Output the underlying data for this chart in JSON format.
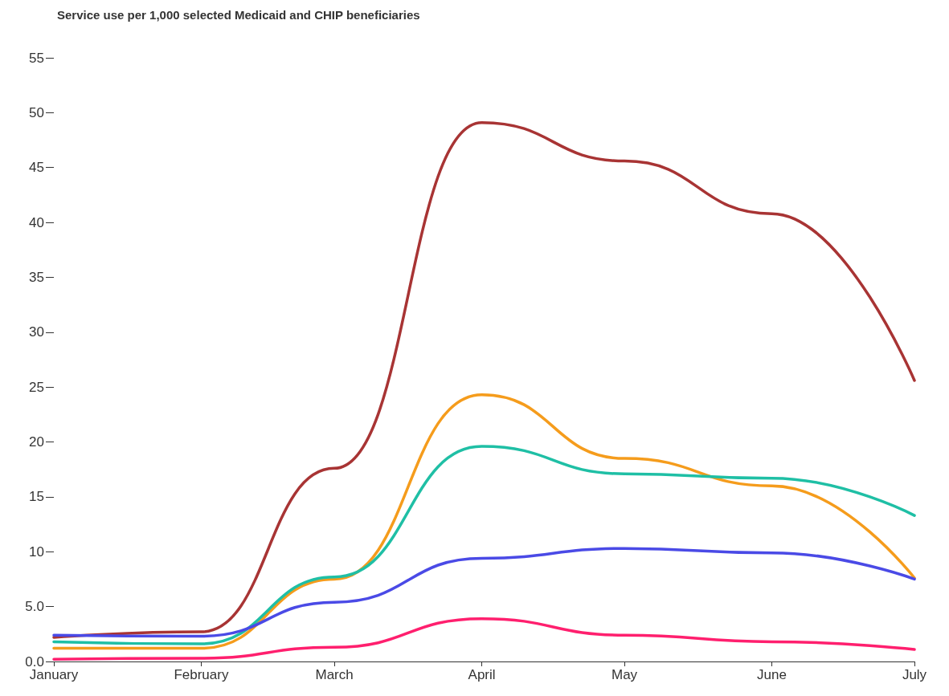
{
  "chart_data": {
    "type": "line",
    "title": "Service use per 1,000 selected Medicaid and CHIP beneficiaries",
    "x": [
      "--01-01",
      "--02-01",
      "--03-01",
      "--04-01",
      "--05-01",
      "--06-01",
      "--07-01"
    ],
    "xlim": [
      "--01-01",
      "--07-01"
    ],
    "xticks": [
      {
        "value": "--01-01",
        "label": "January"
      },
      {
        "value": "--02-01",
        "label": "February"
      },
      {
        "value": "--03-01",
        "label": "March"
      },
      {
        "value": "--04-01",
        "label": "April"
      },
      {
        "value": "--05-01",
        "label": "May"
      },
      {
        "value": "--06-01",
        "label": "June"
      },
      {
        "value": "--07-01",
        "label": "July"
      }
    ],
    "ylim": [
      0,
      55
    ],
    "yticks": [
      {
        "value": 0,
        "label": "0.0"
      },
      {
        "value": 5,
        "label": "5.0"
      },
      10,
      15,
      20,
      25,
      30,
      35,
      40,
      45,
      50,
      55
    ],
    "grid": false,
    "marker": "none",
    "line_style": "solid",
    "series": [
      {
        "color": "#a83434",
        "values": [
          2.2,
          2.7,
          17.6,
          49.1,
          45.6,
          40.8,
          25.6
        ]
      },
      {
        "color": "#f59c1c",
        "values": [
          1.2,
          1.2,
          7.5,
          24.3,
          18.5,
          16.0,
          7.6
        ]
      },
      {
        "color": "#1fbfa5",
        "values": [
          1.8,
          1.6,
          7.7,
          19.6,
          17.1,
          16.7,
          13.3
        ]
      },
      {
        "color": "#4a4ae6",
        "values": [
          2.4,
          2.3,
          5.4,
          9.4,
          10.3,
          9.9,
          7.5
        ]
      },
      {
        "color": "#ff1f6e",
        "values": [
          0.2,
          0.3,
          1.3,
          3.9,
          2.4,
          1.8,
          1.1
        ]
      }
    ]
  }
}
